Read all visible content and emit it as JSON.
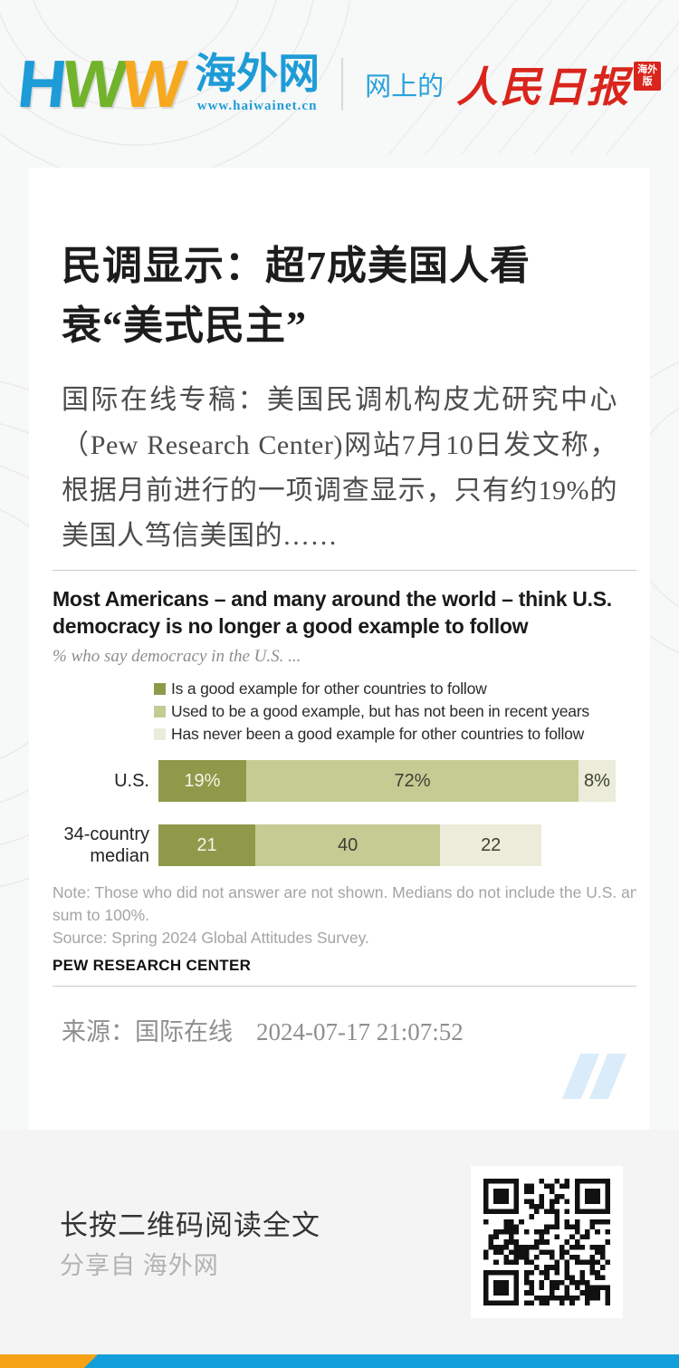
{
  "header": {
    "logo_letters": [
      {
        "char": "H",
        "color": "#1e9cd7"
      },
      {
        "char": "W",
        "color": "#72b32c"
      },
      {
        "char": "W",
        "color": "#f6a91f"
      }
    ],
    "site_name": "海外网",
    "site_url": "www.haiwainet.cn",
    "tagline": "网上的",
    "brand_name": "人民日报",
    "brand_edition": "海外版"
  },
  "article": {
    "title": "民调显示：超7成美国人看衰“美式民主”",
    "excerpt": "国际在线专稿：美国民调机构皮尤研究中心（Pew Research Center)网站7月10日发文称，根据月前进行的一项调查显示，只有约19%的美国人笃信美国的……",
    "source_label": "来源：国际在线",
    "timestamp": "2024-07-17 21:07:52"
  },
  "chart_data": {
    "type": "bar",
    "variant": "horizontal-stacked",
    "title": "Most Americans – and many around the world – think U.S. democracy is no longer a good example to follow",
    "subtitle": "% who say democracy in the U.S. ...",
    "legend": [
      "Is a good example for other countries to follow",
      "Used to be a good example, but has not been in recent years",
      "Has never been a good example for other countries to follow"
    ],
    "colors": [
      "#8e9a4a",
      "#c6cb94",
      "#ebecd9"
    ],
    "categories": [
      "U.S.",
      "34-country median"
    ],
    "series": [
      {
        "name": "Is a good example for other countries to follow",
        "values": [
          19,
          21
        ]
      },
      {
        "name": "Used to be a good example, but has not been in recent years",
        "values": [
          72,
          40
        ]
      },
      {
        "name": "Has never been a good example for other countries to follow",
        "values": [
          8,
          22
        ]
      }
    ],
    "bar_labels": [
      [
        "19%",
        "72%",
        "8%"
      ],
      [
        "21",
        "40",
        "22"
      ]
    ],
    "xlim": [
      0,
      100
    ],
    "note_line_1": "Note: Those who did not answer are not shown. Medians do not include the U.S. and may not",
    "note_line_2": "sum to 100%.",
    "note_line_3": "Source: Spring 2024 Global Attitudes Survey.",
    "credit": "PEW RESEARCH CENTER",
    "legend_position": "top",
    "grid": false
  },
  "footer": {
    "cta": "长按二维码阅读全文",
    "share_from": "分享自 海外网"
  },
  "colors": {
    "accent_blue": "#129fdc",
    "accent_orange": "#f5a216",
    "brand_red": "#d9251c",
    "card_bg": "#ffffff",
    "page_bg": "#f7f8f8"
  }
}
